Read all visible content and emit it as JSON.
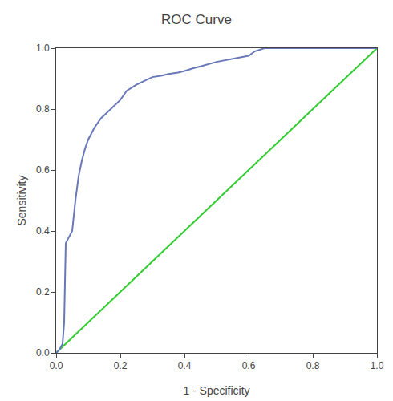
{
  "chart_data": {
    "type": "line",
    "title": "ROC Curve",
    "xlabel": "1 - Specificity",
    "ylabel": "Sensitivity",
    "xlim": [
      0.0,
      1.0
    ],
    "ylim": [
      0.0,
      1.0
    ],
    "xticks": [
      {
        "value": 0.0,
        "label": "0.0"
      },
      0.2,
      0.4,
      0.6,
      0.8,
      {
        "value": 1.0,
        "label": "1.0"
      }
    ],
    "yticks": [
      {
        "value": 0.0,
        "label": "0.0"
      },
      0.2,
      0.4,
      0.6,
      0.8,
      {
        "value": 1.0,
        "label": "1.0"
      }
    ],
    "grid": false,
    "series": [
      {
        "color": "#33cc33",
        "x": [
          0,
          1
        ],
        "values": [
          0,
          1
        ]
      },
      {
        "color": "#6878b8",
        "x": [
          0.0,
          0.005,
          0.01,
          0.015,
          0.02,
          0.025,
          0.03,
          0.035,
          0.04,
          0.05,
          0.06,
          0.07,
          0.08,
          0.09,
          0.1,
          0.12,
          0.14,
          0.16,
          0.18,
          0.2,
          0.22,
          0.25,
          0.28,
          0.3,
          0.33,
          0.35,
          0.38,
          0.4,
          0.43,
          0.45,
          0.5,
          0.55,
          0.6,
          0.62,
          0.65,
          1.0
        ],
        "values": [
          0.0,
          0.005,
          0.01,
          0.02,
          0.03,
          0.1,
          0.36,
          0.37,
          0.38,
          0.4,
          0.5,
          0.58,
          0.63,
          0.67,
          0.7,
          0.74,
          0.77,
          0.79,
          0.81,
          0.83,
          0.86,
          0.88,
          0.895,
          0.905,
          0.91,
          0.915,
          0.92,
          0.925,
          0.935,
          0.94,
          0.955,
          0.965,
          0.975,
          0.99,
          1.0,
          1.0
        ]
      }
    ]
  }
}
